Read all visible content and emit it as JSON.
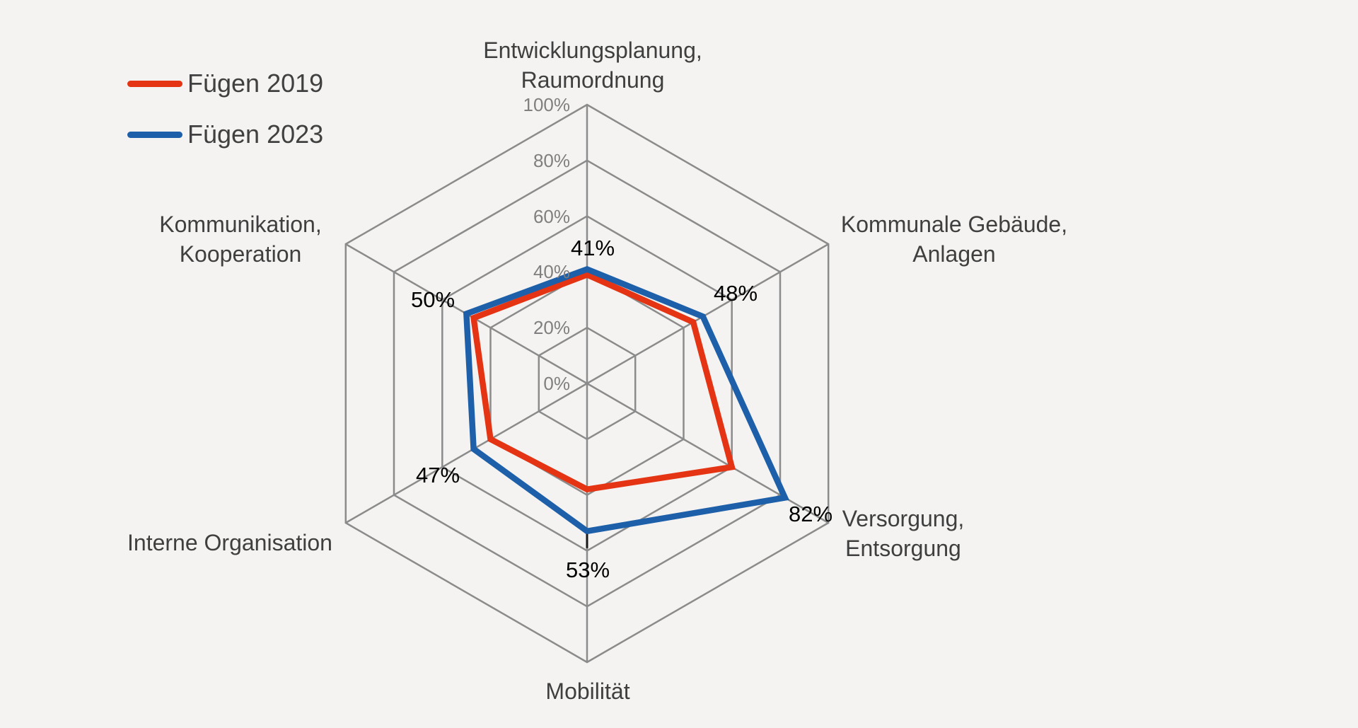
{
  "background_color": "#f4f3f1",
  "legend": {
    "position": "top-left",
    "items": [
      {
        "label": "Fügen 2019",
        "color": "#e43413"
      },
      {
        "label": "Fügen 2023",
        "color": "#1d5fa8"
      }
    ]
  },
  "chart_data": {
    "type": "radar",
    "title": "",
    "categories": [
      {
        "lines": [
          "Entwicklungsplanung,",
          "Raumordnung"
        ]
      },
      {
        "lines": [
          "Kommunale Gebäude,",
          "Anlagen"
        ]
      },
      {
        "lines": [
          "Versorgung,",
          "Entsorgung"
        ]
      },
      {
        "lines": [
          "Mobilität"
        ]
      },
      {
        "lines": [
          "Interne Organisation"
        ]
      },
      {
        "lines": [
          "Kommunikation,",
          "Kooperation"
        ]
      }
    ],
    "ticks": [
      "0%",
      "20%",
      "40%",
      "60%",
      "80%",
      "100%"
    ],
    "radial_range": [
      0,
      100
    ],
    "grid": true,
    "grid_shape": "hexagon",
    "legend_position": "top-left",
    "series": [
      {
        "name": "Fügen 2019",
        "color": "#e43413",
        "values": [
          39,
          44,
          60,
          38,
          40,
          47
        ]
      },
      {
        "name": "Fügen 2023",
        "color": "#1d5fa8",
        "values": [
          41,
          48,
          82,
          53,
          47,
          50
        ],
        "data_labels": [
          "41%",
          "48%",
          "82%",
          "53%",
          "47%",
          "50%"
        ]
      }
    ],
    "colors": {
      "grid": "#8b8b8b",
      "tick_text": "#7f7f7f",
      "axis_text": "#3f3f3f",
      "data_label_text": "#000000"
    }
  }
}
